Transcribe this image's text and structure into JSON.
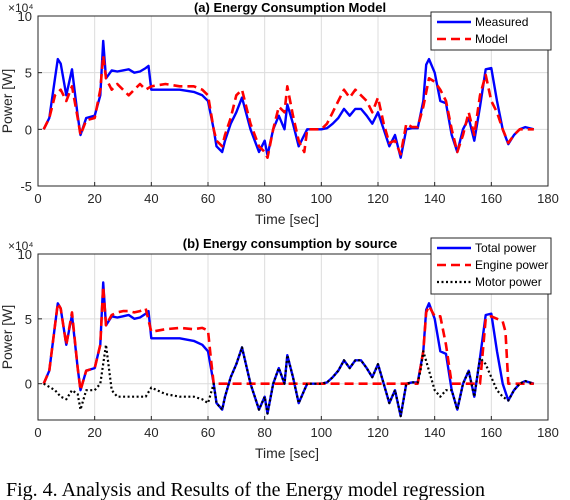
{
  "caption": "Fig. 4.  Analysis and Results of the Energy model regression",
  "chart_data": [
    {
      "type": "line",
      "title": "(a) Energy Consumption Model",
      "xlabel": "Time [sec]",
      "ylabel": "Power [W]",
      "y_multiplier": "×10⁴",
      "xlim": [
        0,
        180
      ],
      "ylim": [
        -5,
        10
      ],
      "xticks": [
        0,
        20,
        40,
        60,
        80,
        100,
        120,
        140,
        160,
        180
      ],
      "yticks": [
        -5,
        0,
        5,
        10
      ],
      "grid": true,
      "legend_position": "top-right",
      "series": [
        {
          "name": "Measured",
          "color": "#0000ff",
          "style": "solid",
          "x": [
            2,
            4,
            6,
            7,
            8,
            10,
            12,
            14,
            15,
            17,
            20,
            22,
            23,
            24,
            26,
            28,
            30,
            32,
            34,
            36,
            38,
            39,
            40,
            45,
            50,
            55,
            58,
            60,
            62,
            63,
            65,
            66,
            68,
            70,
            72,
            75,
            78,
            80,
            81,
            83,
            85,
            87,
            88,
            90,
            92,
            94,
            95,
            96,
            98,
            100,
            102,
            104,
            106,
            108,
            110,
            112,
            114,
            116,
            118,
            120,
            122,
            124,
            126,
            128,
            130,
            132,
            134,
            136,
            137,
            138,
            140,
            142,
            144,
            146,
            148,
            150,
            152,
            154,
            156,
            158,
            160,
            162,
            164,
            166,
            168,
            170,
            172,
            175
          ],
          "values": [
            0,
            1,
            4.5,
            6.2,
            5.8,
            3,
            5.3,
            1.2,
            -0.5,
            1,
            1.2,
            3,
            7.8,
            4.5,
            5.2,
            5.1,
            5.2,
            5.3,
            5,
            5.1,
            5.4,
            5.6,
            3.5,
            3.5,
            3.5,
            3.3,
            3,
            2.5,
            0,
            -1.5,
            -2,
            -1,
            0.5,
            1.5,
            2.8,
            0,
            -2,
            -1,
            -2.3,
            0,
            1.2,
            0,
            2.2,
            0.5,
            -1.5,
            -0.5,
            0,
            0,
            0,
            0,
            0.1,
            0.5,
            1,
            1.8,
            1.2,
            1.8,
            1.8,
            1.2,
            0.5,
            1.5,
            0,
            -1.5,
            -0.5,
            -2.5,
            0,
            0.1,
            0.1,
            2.5,
            5.7,
            6.2,
            5,
            2.5,
            2.3,
            -0.5,
            -2,
            0,
            1,
            -1,
            2,
            5.3,
            5.4,
            2.5,
            0,
            -1.3,
            -0.5,
            0,
            0.2,
            0
          ]
        },
        {
          "name": "Model",
          "color": "#ff0000",
          "style": "dashed",
          "x": [
            2,
            4,
            6,
            8,
            10,
            12,
            14,
            15,
            17,
            20,
            22,
            23,
            24,
            26,
            28,
            30,
            32,
            34,
            36,
            38,
            40,
            45,
            50,
            55,
            58,
            60,
            62,
            63,
            65,
            66,
            68,
            70,
            72,
            75,
            78,
            80,
            81,
            83,
            85,
            87,
            88,
            90,
            92,
            94,
            95,
            96,
            98,
            100,
            102,
            104,
            106,
            108,
            110,
            112,
            114,
            116,
            118,
            120,
            122,
            124,
            126,
            128,
            130,
            132,
            134,
            136,
            138,
            140,
            142,
            144,
            146,
            148,
            150,
            152,
            154,
            156,
            158,
            160,
            162,
            164,
            166,
            168,
            170,
            172,
            175
          ],
          "values": [
            0,
            1,
            3,
            3.5,
            2.5,
            3.8,
            1,
            -0.5,
            0.8,
            1,
            3.5,
            6.5,
            4.5,
            3.5,
            4,
            3.5,
            3,
            3.5,
            4,
            3.5,
            3.8,
            4,
            3.8,
            3.8,
            3.5,
            3,
            0,
            -1,
            -1.5,
            -0.5,
            1,
            3,
            3.5,
            0.5,
            -1.5,
            -2,
            -2.5,
            0,
            2,
            1.5,
            3.8,
            1.2,
            -1,
            -2,
            0,
            0,
            0,
            0,
            0.5,
            1.5,
            2.5,
            3.5,
            2.8,
            3.5,
            3,
            2.5,
            1.5,
            2.8,
            0.5,
            -1.2,
            -1,
            -2.2,
            0.5,
            0.2,
            0.2,
            2,
            4.5,
            4.2,
            3.5,
            2.5,
            0,
            -2,
            -0.5,
            1.5,
            -0.5,
            3,
            4.8,
            2.5,
            1.5,
            0,
            -1.2,
            -0.5,
            0,
            0,
            0
          ]
        }
      ]
    },
    {
      "type": "line",
      "title": "(b) Energy consumption by source",
      "xlabel": "Time [sec]",
      "ylabel": "Power [W]",
      "y_multiplier": "×10⁴",
      "xlim": [
        0,
        180
      ],
      "ylim": [
        -2.8,
        10
      ],
      "xticks": [
        0,
        20,
        40,
        60,
        80,
        100,
        120,
        140,
        160,
        180
      ],
      "yticks": [
        0,
        5,
        10
      ],
      "grid": true,
      "legend_position": "top-right",
      "series": [
        {
          "name": "Total power",
          "color": "#0000ff",
          "style": "solid",
          "x": [
            2,
            4,
            6,
            7,
            8,
            10,
            12,
            14,
            15,
            17,
            20,
            22,
            23,
            24,
            26,
            28,
            30,
            32,
            34,
            36,
            38,
            39,
            40,
            45,
            50,
            55,
            58,
            60,
            62,
            63,
            65,
            66,
            68,
            70,
            72,
            75,
            78,
            80,
            81,
            83,
            85,
            87,
            88,
            90,
            92,
            94,
            95,
            96,
            98,
            100,
            102,
            104,
            106,
            108,
            110,
            112,
            114,
            116,
            118,
            120,
            122,
            124,
            126,
            128,
            130,
            132,
            134,
            136,
            137,
            138,
            140,
            142,
            144,
            146,
            148,
            150,
            152,
            154,
            156,
            158,
            160,
            162,
            164,
            166,
            168,
            170,
            172,
            175
          ],
          "values": [
            0,
            1,
            4.5,
            6.2,
            5.8,
            3,
            5.3,
            1.2,
            -0.5,
            1,
            1.2,
            3,
            7.8,
            4.5,
            5.2,
            5.1,
            5.2,
            5.3,
            5,
            5.1,
            5.4,
            5.6,
            3.5,
            3.5,
            3.5,
            3.3,
            3,
            2.5,
            0,
            -1.5,
            -2,
            -1,
            0.5,
            1.5,
            2.8,
            0,
            -2,
            -1,
            -2.3,
            0,
            1.2,
            0,
            2.2,
            0.5,
            -1.5,
            -0.5,
            0,
            0,
            0,
            0,
            0.1,
            0.5,
            1,
            1.8,
            1.2,
            1.8,
            1.8,
            1.2,
            0.5,
            1.5,
            0,
            -1.5,
            -0.5,
            -2.5,
            0,
            0.1,
            0.1,
            2.5,
            5.7,
            6.2,
            5,
            2.5,
            2.3,
            -0.5,
            -2,
            0,
            1,
            -1,
            2,
            5.3,
            5.4,
            2.5,
            0,
            -1.3,
            -0.5,
            0,
            0.2,
            0
          ]
        },
        {
          "name": "Engine power",
          "color": "#ff0000",
          "style": "dashed",
          "x": [
            2,
            4,
            6,
            7,
            8,
            10,
            12,
            14,
            15,
            17,
            20,
            22,
            23,
            24,
            26,
            28,
            30,
            32,
            34,
            36,
            38,
            40,
            45,
            50,
            55,
            58,
            60,
            61,
            62,
            65,
            70,
            80,
            90,
            100,
            110,
            120,
            130,
            134,
            136,
            137,
            138,
            140,
            142,
            144,
            146,
            148,
            150,
            152,
            154,
            156,
            158,
            160,
            162,
            164,
            165,
            166,
            170,
            175
          ],
          "values": [
            0,
            1,
            4.5,
            6.2,
            5.8,
            3,
            5.5,
            1.2,
            -0.5,
            1,
            1.2,
            3,
            7.5,
            4.5,
            5.3,
            5.5,
            5.6,
            5.6,
            5.5,
            5.6,
            5.8,
            4,
            4.2,
            4.3,
            4.2,
            4.3,
            4.1,
            2,
            0,
            0,
            0,
            0,
            0,
            0,
            0,
            0,
            0,
            0,
            2.5,
            5.5,
            6,
            5.2,
            5.2,
            3,
            0,
            0,
            0,
            0,
            0,
            0,
            5,
            5.2,
            5,
            4.8,
            4,
            0,
            0,
            0
          ]
        },
        {
          "name": "Motor power",
          "color": "#000000",
          "style": "dotted",
          "x": [
            2,
            6,
            8,
            10,
            12,
            14,
            15,
            17,
            20,
            22,
            24,
            26,
            28,
            30,
            32,
            35,
            38,
            40,
            45,
            50,
            55,
            58,
            60,
            62,
            63,
            65,
            66,
            68,
            70,
            72,
            75,
            78,
            80,
            81,
            83,
            85,
            87,
            88,
            90,
            92,
            94,
            95,
            96,
            98,
            100,
            102,
            104,
            106,
            108,
            110,
            112,
            114,
            116,
            118,
            120,
            122,
            124,
            126,
            128,
            130,
            132,
            134,
            135,
            136,
            138,
            140,
            142,
            144,
            146,
            148,
            150,
            152,
            154,
            156,
            158,
            160,
            162,
            164,
            166,
            168,
            170,
            172,
            175
          ],
          "values": [
            0,
            -0.5,
            -1,
            -1.2,
            -0.5,
            -0.8,
            -2,
            -0.5,
            -0.5,
            0,
            3,
            -0.5,
            -1,
            -1,
            -1,
            -1,
            -1,
            -0.3,
            -0.8,
            -1,
            -1,
            -1.2,
            -1.5,
            0,
            -1.5,
            -2,
            -1,
            0.5,
            1.5,
            2.8,
            0,
            -2,
            -1,
            -2.3,
            0,
            1.2,
            0,
            2.2,
            0.5,
            -1.5,
            -0.5,
            0,
            0,
            0,
            0,
            0.1,
            0.5,
            1,
            1.8,
            1.2,
            1.8,
            1.8,
            1.2,
            0.5,
            1.5,
            0,
            -1.5,
            -0.5,
            -2.5,
            0,
            0.1,
            0.1,
            1,
            2.5,
            1,
            -0.5,
            -1,
            -0.5,
            -0.5,
            -2,
            0,
            1,
            -1,
            2,
            1.5,
            0.5,
            -0.5,
            -1,
            -1.3,
            -0.5,
            0,
            0.2,
            0
          ]
        }
      ]
    }
  ]
}
